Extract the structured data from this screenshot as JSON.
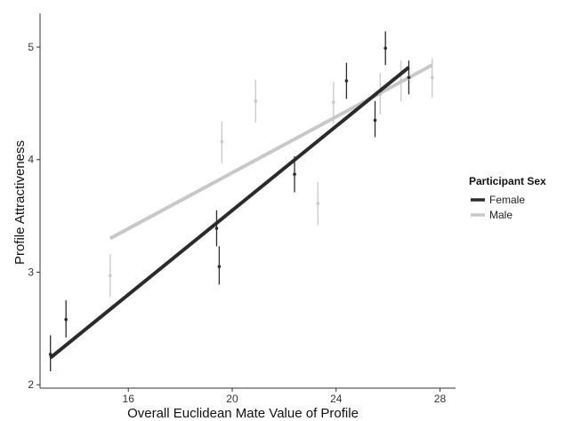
{
  "chart_data": {
    "type": "scatter",
    "xlabel": "Overall Euclidean Mate Value of Profile",
    "ylabel": "Profile Attractiveness",
    "xlim": [
      12.6,
      28.6
    ],
    "ylim": [
      1.97,
      5.3
    ],
    "x_ticks": [
      16,
      20,
      24,
      28
    ],
    "y_ticks": [
      2,
      3,
      4,
      5
    ],
    "x_tick_labels": [
      "16",
      "20",
      "24",
      "28"
    ],
    "y_tick_labels": [
      "2",
      "3",
      "4",
      "5"
    ],
    "grid": false,
    "legend": {
      "title": "Participant Sex",
      "position": "right",
      "entries": [
        "Female",
        "Male"
      ]
    },
    "series": [
      {
        "name": "Female",
        "color": "#2b2b2b",
        "line": {
          "x": [
            13.0,
            26.8
          ],
          "y": [
            2.24,
            4.82
          ]
        },
        "points": [
          {
            "x": 13.0,
            "y": 2.27,
            "lo": 2.12,
            "hi": 2.44
          },
          {
            "x": 13.6,
            "y": 2.58,
            "lo": 2.42,
            "hi": 2.75
          },
          {
            "x": 19.4,
            "y": 3.39,
            "lo": 3.23,
            "hi": 3.55
          },
          {
            "x": 19.5,
            "y": 3.05,
            "lo": 2.89,
            "hi": 3.23
          },
          {
            "x": 22.4,
            "y": 3.87,
            "lo": 3.71,
            "hi": 4.03
          },
          {
            "x": 24.4,
            "y": 4.7,
            "lo": 4.54,
            "hi": 4.86
          },
          {
            "x": 25.5,
            "y": 4.35,
            "lo": 4.2,
            "hi": 4.52
          },
          {
            "x": 25.9,
            "y": 4.99,
            "lo": 4.84,
            "hi": 5.14
          },
          {
            "x": 26.8,
            "y": 4.73,
            "lo": 4.58,
            "hi": 4.88
          }
        ]
      },
      {
        "name": "Male",
        "color": "#c8c8c8",
        "line": {
          "x": [
            15.3,
            27.7
          ],
          "y": [
            3.3,
            4.84
          ]
        },
        "points": [
          {
            "x": 15.3,
            "y": 2.97,
            "lo": 2.78,
            "hi": 3.16
          },
          {
            "x": 19.6,
            "y": 4.16,
            "lo": 3.97,
            "hi": 4.34
          },
          {
            "x": 20.9,
            "y": 4.52,
            "lo": 4.33,
            "hi": 4.71
          },
          {
            "x": 23.3,
            "y": 3.61,
            "lo": 3.42,
            "hi": 3.8
          },
          {
            "x": 23.9,
            "y": 4.51,
            "lo": 4.32,
            "hi": 4.69
          },
          {
            "x": 25.7,
            "y": 4.58,
            "lo": 4.4,
            "hi": 4.77
          },
          {
            "x": 26.5,
            "y": 4.7,
            "lo": 4.52,
            "hi": 4.88
          },
          {
            "x": 27.7,
            "y": 4.73,
            "lo": 4.55,
            "hi": 4.9
          }
        ]
      }
    ]
  }
}
